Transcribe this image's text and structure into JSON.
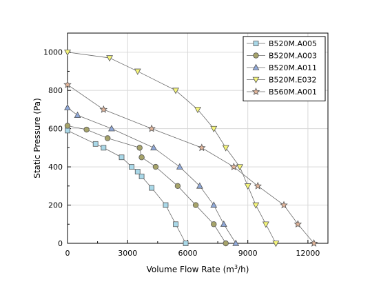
{
  "chart_data": {
    "type": "line",
    "xlabel_prefix": "Volume Flow Rate (m",
    "xlabel_sup": "3",
    "xlabel_suffix": "/h)",
    "ylabel": "Static Pressure (Pa)",
    "xlim": [
      0,
      13000
    ],
    "ylim": [
      0,
      1100
    ],
    "xticks": [
      0,
      3000,
      6000,
      9000,
      12000
    ],
    "xtick_labels": [
      "0",
      "3000",
      "6000",
      "9000",
      "12000"
    ],
    "yticks": [
      0,
      200,
      400,
      600,
      800,
      1000
    ],
    "ytick_labels": [
      "0",
      "200",
      "400",
      "600",
      "800",
      "1000"
    ],
    "grid": true,
    "legend_position": "top-right",
    "series": [
      {
        "name": "B520M.A005",
        "marker": "square",
        "color": "#a9d8e8",
        "points": [
          [
            0,
            590
          ],
          [
            1400,
            520
          ],
          [
            1800,
            500
          ],
          [
            2700,
            450
          ],
          [
            3200,
            400
          ],
          [
            3500,
            375
          ],
          [
            3700,
            350
          ],
          [
            4200,
            290
          ],
          [
            4900,
            200
          ],
          [
            5400,
            100
          ],
          [
            5900,
            0
          ]
        ]
      },
      {
        "name": "B520M.A003",
        "marker": "circle",
        "color": "#a6a36a",
        "points": [
          [
            0,
            615
          ],
          [
            950,
            595
          ],
          [
            2000,
            550
          ],
          [
            3600,
            500
          ],
          [
            3700,
            450
          ],
          [
            4400,
            400
          ],
          [
            5500,
            300
          ],
          [
            6400,
            200
          ],
          [
            7300,
            100
          ],
          [
            7900,
            0
          ]
        ]
      },
      {
        "name": "B520M.A011",
        "marker": "triangle-up",
        "color": "#8fa8d8",
        "points": [
          [
            0,
            710
          ],
          [
            500,
            670
          ],
          [
            2200,
            600
          ],
          [
            4300,
            500
          ],
          [
            5600,
            400
          ],
          [
            6600,
            300
          ],
          [
            7300,
            200
          ],
          [
            7800,
            100
          ],
          [
            8400,
            0
          ]
        ]
      },
      {
        "name": "B520M.E032",
        "marker": "triangle-down",
        "color": "#f5f57a",
        "points": [
          [
            0,
            1000
          ],
          [
            2100,
            970
          ],
          [
            3500,
            900
          ],
          [
            5400,
            800
          ],
          [
            6500,
            700
          ],
          [
            7300,
            600
          ],
          [
            7900,
            500
          ],
          [
            8600,
            400
          ],
          [
            9000,
            300
          ],
          [
            9400,
            200
          ],
          [
            9900,
            100
          ],
          [
            10400,
            0
          ]
        ]
      },
      {
        "name": "B560M.A001",
        "marker": "star",
        "color": "#e0b49a",
        "points": [
          [
            0,
            830
          ],
          [
            1800,
            700
          ],
          [
            4200,
            600
          ],
          [
            6700,
            500
          ],
          [
            8300,
            400
          ],
          [
            9500,
            300
          ],
          [
            10800,
            200
          ],
          [
            11500,
            100
          ],
          [
            12300,
            0
          ]
        ]
      }
    ]
  }
}
